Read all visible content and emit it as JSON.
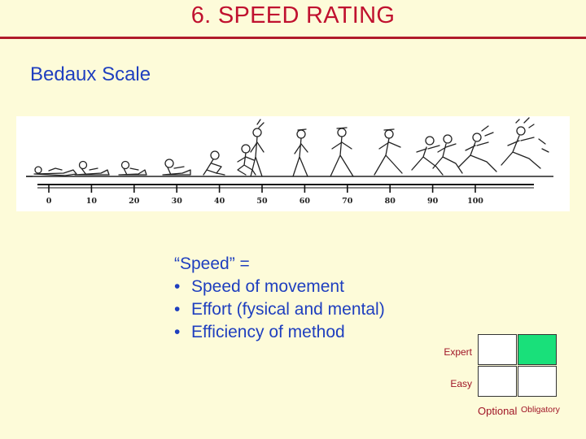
{
  "slide": {
    "title": "6. SPEED RATING",
    "subtitle": "Bedaux Scale"
  },
  "scale": {
    "tick_labels": [
      "0",
      "10",
      "20",
      "30",
      "40",
      "50",
      "60",
      "70",
      "80",
      "90",
      "100"
    ]
  },
  "definition": {
    "lead": "“Speed” =",
    "bullet_char": "•",
    "items": [
      "Speed of movement",
      "Effort (fysical and mental)",
      "Efficiency of method"
    ]
  },
  "matrix": {
    "rows": [
      "Expert",
      "Easy"
    ],
    "columns": [
      "Optional",
      "Obligatory"
    ],
    "highlight_color": "#19e07a"
  },
  "colors": {
    "title": "#c0112f",
    "text": "#1f3fbf",
    "background": "#fdfbd9"
  }
}
